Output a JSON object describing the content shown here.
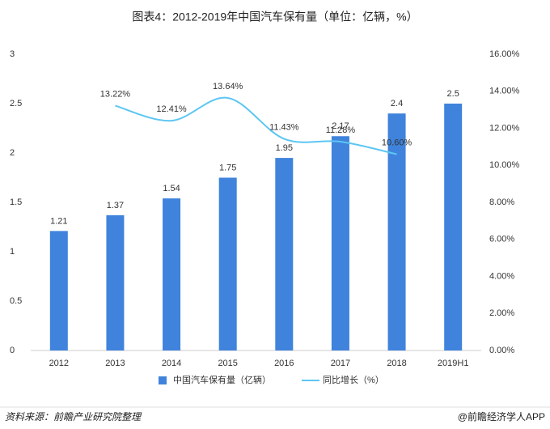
{
  "chart_data": {
    "type": "bar_line",
    "title": "图表4：2012-2019年中国汽车保有量（单位：亿辆，%）",
    "categories": [
      "2012",
      "2013",
      "2014",
      "2015",
      "2016",
      "2017",
      "2018",
      "2019H1"
    ],
    "series": [
      {
        "name": "中国汽车保有量（亿辆）",
        "type": "bar",
        "color": "#3f83dc",
        "values": [
          1.21,
          1.37,
          1.54,
          1.75,
          1.95,
          2.17,
          2.4,
          2.5
        ]
      },
      {
        "name": "同比增长（%）",
        "type": "line",
        "axis": "y2",
        "color": "#5cc6f2",
        "values": [
          null,
          13.22,
          12.41,
          13.64,
          11.43,
          11.28,
          10.6,
          null
        ],
        "value_labels": [
          null,
          "13.22%",
          "12.41%",
          "13.64%",
          "11.43%",
          "11.28%",
          "10.60%",
          null
        ]
      }
    ],
    "ylim": [
      0,
      3
    ],
    "yticks": [
      0,
      0.5,
      1,
      1.5,
      2,
      2.5,
      3
    ],
    "y2lim": [
      0,
      16
    ],
    "y2ticks": [
      {
        "value": 0,
        "label": "0.00%"
      },
      {
        "value": 2,
        "label": "2.00%"
      },
      {
        "value": 4,
        "label": "4.00%"
      },
      {
        "value": 6,
        "label": "6.00%"
      },
      {
        "value": 8,
        "label": "8.00%"
      },
      {
        "value": 10,
        "label": "10.00%"
      },
      {
        "value": 12,
        "label": "12.00%"
      },
      {
        "value": 14,
        "label": "14.00%"
      },
      {
        "value": 16,
        "label": "16.00%"
      }
    ],
    "grid": false,
    "source": "资料来源：前瞻产业研究院整理",
    "credit": "@前瞻经济学人APP"
  }
}
